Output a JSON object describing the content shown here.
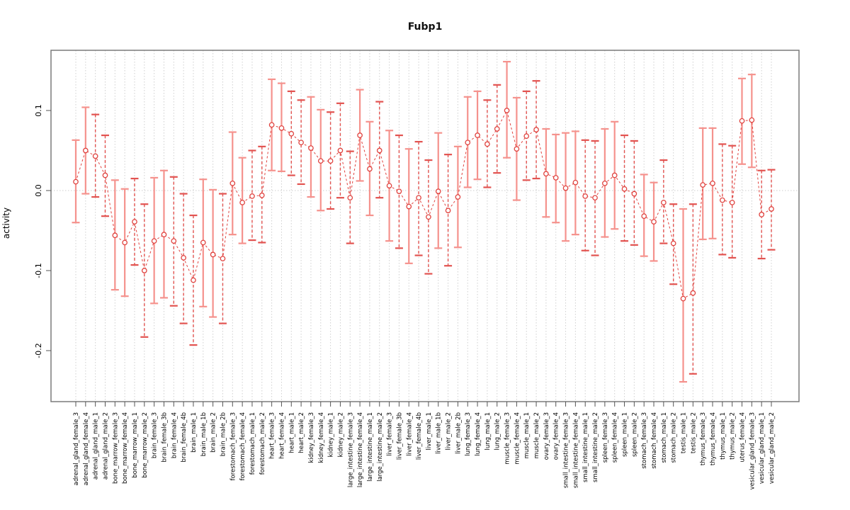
{
  "title": "Fubp1",
  "ylabel": "activity",
  "colors": {
    "point_red": "#e0433f",
    "bar_solid_red": "#f5928d",
    "bar_dashed_red": "#e25350",
    "grid_grey": "#cfcfcf",
    "axis_grey": "#7a7a7a",
    "tick_grey": "#555555",
    "text_black": "#000000"
  },
  "chart_data": {
    "type": "line",
    "title": "Fubp1",
    "xlabel": "",
    "ylabel": "activity",
    "ylim": [
      -0.264,
      0.175
    ],
    "yticks": [
      0.1,
      0.0,
      -0.1,
      -0.2
    ],
    "ytick_labels": [
      "0.1",
      "0.0",
      "-0.1",
      "-0.2"
    ],
    "grid": "dotted vertical line per category, dotted horizontal line at y=0",
    "legend": "none",
    "marker": "open-circle",
    "line_style": "dashed connector between points with error bars",
    "categories": [
      "adrenal_gland_female_3",
      "adrenal_gland_female_4",
      "adrenal_gland_male_1",
      "adrenal_gland_male_2",
      "bone_marrow_female_3",
      "bone_marrow_female_4",
      "bone_marrow_male_1",
      "bone_marrow_male_2",
      "brain_female_3",
      "brain_female_3b",
      "brain_female_4",
      "brain_female_4b",
      "brain_male_1",
      "brain_male_1b",
      "brain_male_2",
      "brain_male_2b",
      "forestomach_female_3",
      "forestomach_female_4",
      "forestomach_male_1",
      "forestomach_male_2",
      "heart_female_3",
      "heart_female_4",
      "heart_male_1",
      "heart_male_2",
      "kidney_female_3",
      "kidney_female_4",
      "kidney_male_1",
      "kidney_male_2",
      "large_intestine_female_3",
      "large_intestine_female_4",
      "large_intestine_male_1",
      "large_intestine_male_2",
      "liver_female_3",
      "liver_female_3b",
      "liver_female_4",
      "liver_female_4b",
      "liver_male_1",
      "liver_male_1b",
      "liver_male_2",
      "liver_male_2b",
      "lung_female_3",
      "lung_female_4",
      "lung_male_1",
      "lung_male_2",
      "muscle_female_3",
      "muscle_female_4",
      "muscle_male_1",
      "muscle_male_2",
      "ovary_female_3",
      "ovary_female_4",
      "small_intestine_female_3",
      "small_intestine_female_4",
      "small_intestine_male_1",
      "small_intestine_male_2",
      "spleen_female_3",
      "spleen_female_4",
      "spleen_male_1",
      "spleen_male_2",
      "stomach_female_3",
      "stomach_female_4",
      "stomach_male_1",
      "stomach_male_2",
      "testis_male_1",
      "testis_male_2",
      "thymus_female_3",
      "thymus_female_4",
      "thymus_male_1",
      "thymus_male_2",
      "uterus_female_4",
      "vesicular_gland_female_3",
      "vesicular_gland_male_1",
      "vesicular_gland_male_2"
    ],
    "values": [
      0.011,
      0.05,
      0.043,
      0.019,
      -0.056,
      -0.065,
      -0.039,
      -0.1,
      -0.063,
      -0.055,
      -0.063,
      -0.084,
      -0.112,
      -0.065,
      -0.08,
      -0.085,
      0.009,
      -0.015,
      -0.007,
      -0.006,
      0.082,
      0.078,
      0.071,
      0.06,
      0.053,
      0.037,
      0.037,
      0.05,
      -0.009,
      0.069,
      0.027,
      0.05,
      0.006,
      -0.001,
      -0.02,
      -0.009,
      -0.033,
      -0.001,
      -0.025,
      -0.008,
      0.06,
      0.069,
      0.058,
      0.077,
      0.1,
      0.052,
      0.068,
      0.076,
      0.021,
      0.016,
      0.003,
      0.01,
      -0.007,
      -0.009,
      0.009,
      0.019,
      0.002,
      -0.004,
      -0.032,
      -0.039,
      -0.015,
      -0.066,
      -0.135,
      -0.128,
      0.007,
      0.009,
      -0.012,
      -0.015,
      0.087,
      0.088,
      -0.03,
      -0.023
    ],
    "err_high": [
      0.063,
      0.104,
      0.095,
      0.069,
      0.013,
      0.002,
      0.015,
      -0.017,
      0.016,
      0.025,
      0.017,
      -0.004,
      -0.031,
      0.014,
      0.001,
      -0.004,
      0.073,
      0.041,
      0.05,
      0.055,
      0.139,
      0.134,
      0.124,
      0.113,
      0.117,
      0.101,
      0.098,
      0.109,
      0.049,
      0.126,
      0.086,
      0.111,
      0.075,
      0.069,
      0.052,
      0.061,
      0.038,
      0.072,
      0.045,
      0.055,
      0.117,
      0.124,
      0.113,
      0.132,
      0.161,
      0.116,
      0.124,
      0.137,
      0.077,
      0.07,
      0.072,
      0.074,
      0.063,
      0.062,
      0.077,
      0.086,
      0.069,
      0.062,
      0.02,
      0.01,
      0.038,
      -0.017,
      -0.023,
      -0.017,
      0.078,
      0.078,
      0.058,
      0.056,
      0.14,
      0.145,
      0.025,
      0.026
    ],
    "err_low": [
      -0.04,
      -0.004,
      -0.008,
      -0.032,
      -0.124,
      -0.132,
      -0.093,
      -0.183,
      -0.141,
      -0.134,
      -0.144,
      -0.166,
      -0.193,
      -0.145,
      -0.158,
      -0.166,
      -0.055,
      -0.066,
      -0.062,
      -0.065,
      0.025,
      0.024,
      0.019,
      0.008,
      -0.008,
      -0.025,
      -0.023,
      -0.009,
      -0.066,
      0.012,
      -0.031,
      -0.009,
      -0.063,
      -0.072,
      -0.091,
      -0.081,
      -0.104,
      -0.072,
      -0.094,
      -0.071,
      0.004,
      0.014,
      0.004,
      0.022,
      0.041,
      -0.012,
      0.013,
      0.015,
      -0.033,
      -0.04,
      -0.063,
      -0.055,
      -0.075,
      -0.081,
      -0.058,
      -0.048,
      -0.063,
      -0.068,
      -0.082,
      -0.088,
      -0.066,
      -0.117,
      -0.239,
      -0.229,
      -0.061,
      -0.06,
      -0.08,
      -0.084,
      0.033,
      0.029,
      -0.085,
      -0.074
    ],
    "stem_dashed": [
      false,
      false,
      true,
      true,
      false,
      false,
      true,
      true,
      false,
      false,
      true,
      true,
      true,
      false,
      false,
      true,
      false,
      false,
      true,
      true,
      false,
      false,
      true,
      true,
      false,
      false,
      true,
      true,
      true,
      false,
      false,
      true,
      false,
      true,
      false,
      true,
      true,
      false,
      true,
      false,
      false,
      false,
      true,
      true,
      false,
      false,
      true,
      true,
      false,
      false,
      false,
      false,
      true,
      true,
      false,
      false,
      true,
      true,
      false,
      false,
      true,
      true,
      false,
      true,
      false,
      false,
      true,
      true,
      false,
      false,
      true,
      true
    ]
  }
}
